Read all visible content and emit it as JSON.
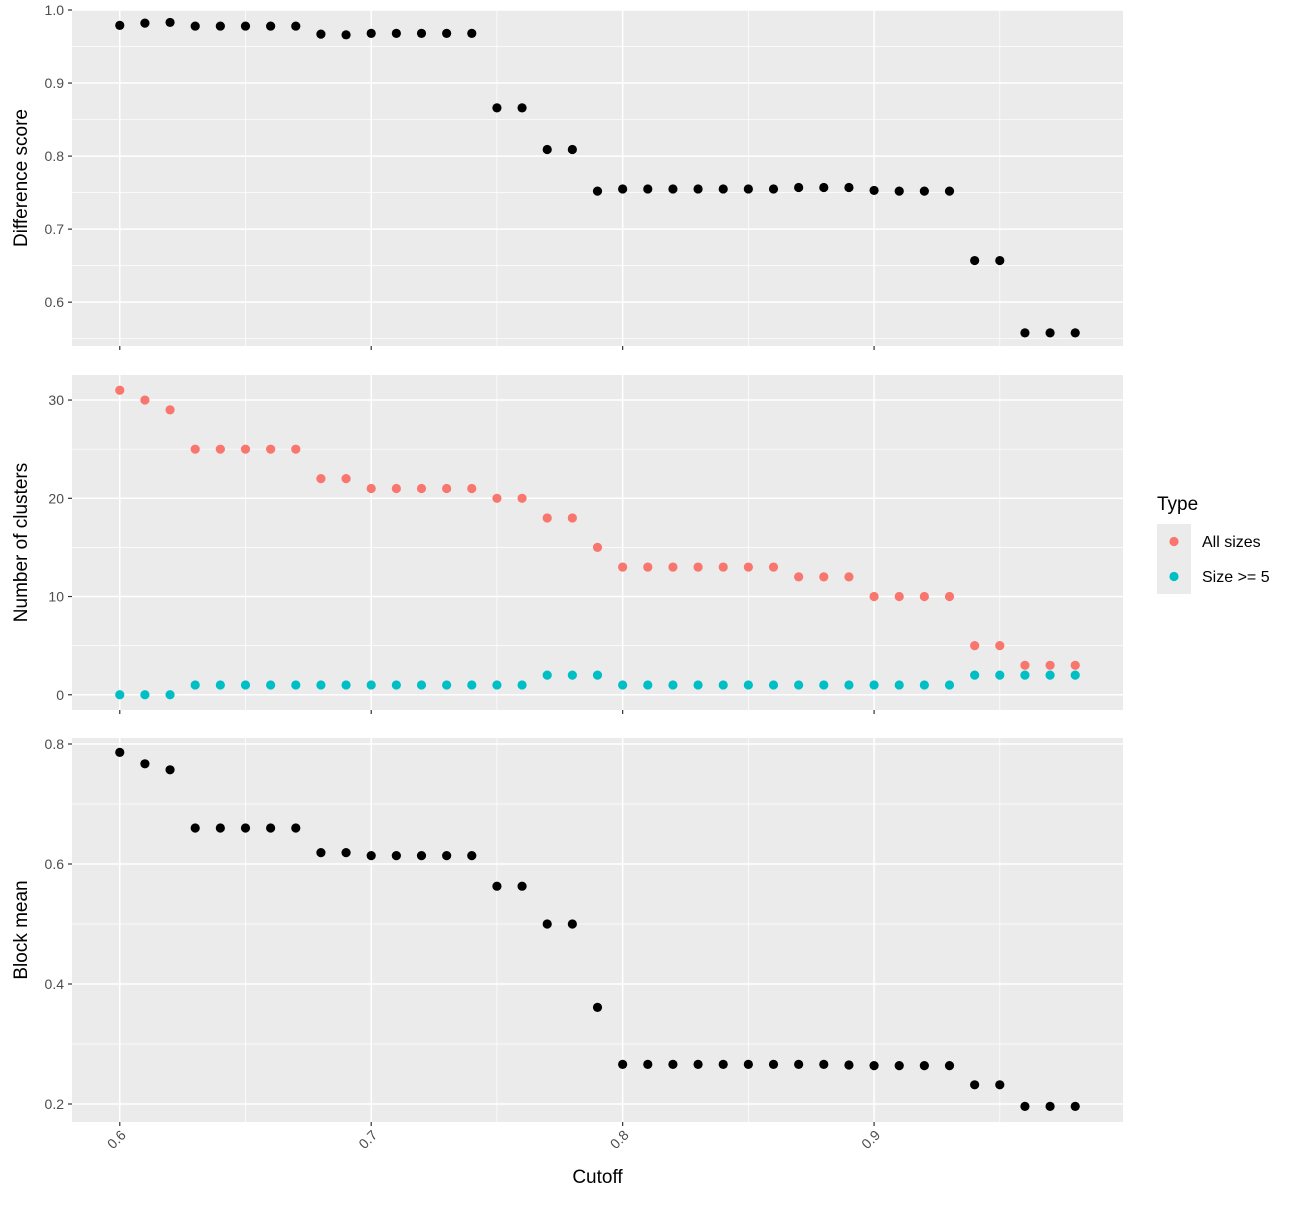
{
  "chart_data": {
    "type": "scatter",
    "x_axis": {
      "label": "Cutoff",
      "ticks": [
        0.6,
        0.7,
        0.8,
        0.9
      ],
      "tick_labels": [
        "0.6",
        "0.7",
        "0.8",
        "0.9"
      ],
      "range": [
        0.581,
        0.999
      ]
    },
    "x": [
      0.6,
      0.61,
      0.62,
      0.63,
      0.64,
      0.65,
      0.66,
      0.67,
      0.68,
      0.69,
      0.7,
      0.71,
      0.72,
      0.73,
      0.74,
      0.75,
      0.76,
      0.77,
      0.78,
      0.79,
      0.8,
      0.81,
      0.82,
      0.83,
      0.84,
      0.85,
      0.86,
      0.87,
      0.88,
      0.89,
      0.9,
      0.91,
      0.92,
      0.93,
      0.94,
      0.95,
      0.96,
      0.97,
      0.98
    ],
    "panels": [
      {
        "ylabel": "Difference score",
        "ylim": [
          0.54,
          1.0
        ],
        "yticks": [
          0.6,
          0.7,
          0.8,
          0.9,
          1.0
        ],
        "ytick_labels": [
          "0.6",
          "0.7",
          "0.8",
          "0.9",
          "1.0"
        ],
        "series": [
          {
            "color": "#000000",
            "values": [
              0.979,
              0.982,
              0.983,
              0.978,
              0.978,
              0.978,
              0.978,
              0.978,
              0.967,
              0.966,
              0.968,
              0.968,
              0.968,
              0.968,
              0.968,
              0.866,
              0.866,
              0.809,
              0.809,
              0.752,
              0.755,
              0.755,
              0.755,
              0.755,
              0.755,
              0.755,
              0.755,
              0.757,
              0.757,
              0.757,
              0.753,
              0.752,
              0.752,
              0.752,
              0.657,
              0.657,
              0.558,
              0.558,
              0.558
            ]
          }
        ]
      },
      {
        "ylabel": "Number of clusters",
        "ylim": [
          -1.55,
          32.55
        ],
        "yticks": [
          0,
          10,
          20,
          30
        ],
        "ytick_labels": [
          "0",
          "10",
          "20",
          "30"
        ],
        "series": [
          {
            "name": "All sizes",
            "color": "#F8766D",
            "values": [
              31,
              30,
              29,
              25,
              25,
              25,
              25,
              25,
              22,
              22,
              21,
              21,
              21,
              21,
              21,
              20,
              20,
              18,
              18,
              15,
              13,
              13,
              13,
              13,
              13,
              13,
              13,
              12,
              12,
              12,
              10,
              10,
              10,
              10,
              5,
              5,
              3,
              3,
              3
            ]
          },
          {
            "name": "Size >= 5",
            "color": "#00BFC4",
            "values": [
              0,
              0,
              0,
              1,
              1,
              1,
              1,
              1,
              1,
              1,
              1,
              1,
              1,
              1,
              1,
              1,
              1,
              2,
              2,
              2,
              1,
              1,
              1,
              1,
              1,
              1,
              1,
              1,
              1,
              1,
              1,
              1,
              1,
              1,
              2,
              2,
              2,
              2,
              2
            ]
          }
        ]
      },
      {
        "ylabel": "Block mean",
        "ylim": [
          0.17,
          0.81
        ],
        "yticks": [
          0.2,
          0.4,
          0.6,
          0.8
        ],
        "ytick_labels": [
          "0.2",
          "0.4",
          "0.6",
          "0.8"
        ],
        "series": [
          {
            "color": "#000000",
            "values": [
              0.786,
              0.767,
              0.757,
              0.66,
              0.66,
              0.66,
              0.66,
              0.66,
              0.619,
              0.619,
              0.614,
              0.614,
              0.614,
              0.614,
              0.614,
              0.563,
              0.563,
              0.5,
              0.5,
              0.361,
              0.266,
              0.266,
              0.266,
              0.266,
              0.266,
              0.266,
              0.266,
              0.266,
              0.266,
              0.265,
              0.264,
              0.264,
              0.264,
              0.264,
              0.232,
              0.232,
              0.196,
              0.196,
              0.196
            ]
          }
        ]
      }
    ],
    "legend": {
      "title": "Type",
      "placement": "right",
      "entries": [
        {
          "label": "All sizes",
          "color": "#F8766D"
        },
        {
          "label": "Size >= 5",
          "color": "#00BFC4"
        }
      ]
    },
    "grid": true,
    "panel_background": "#EBEBEB",
    "grid_color": "#FFFFFF"
  }
}
